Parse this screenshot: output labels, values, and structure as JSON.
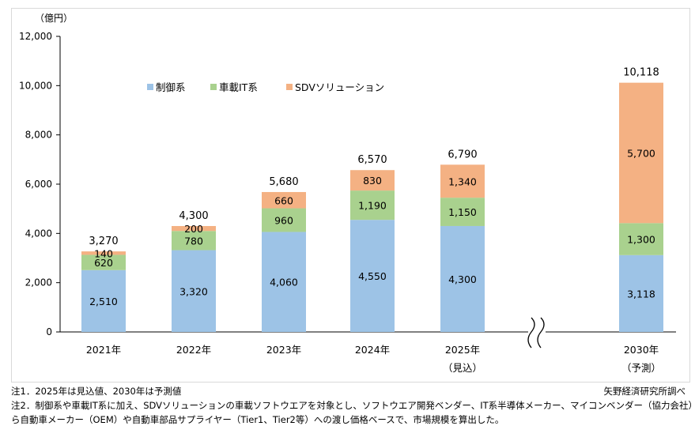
{
  "chart_data": {
    "type": "bar",
    "stacked": true,
    "unit_label": "（億円）",
    "ylim": [
      0,
      12000
    ],
    "yticks": [
      "0",
      "2,000",
      "4,000",
      "6,000",
      "8,000",
      "10,000",
      "12,000"
    ],
    "ytick_values": [
      0,
      2000,
      4000,
      6000,
      8000,
      10000,
      12000
    ],
    "categories": [
      "2021年",
      "2022年",
      "2023年",
      "2024年",
      "2025年",
      "2030年"
    ],
    "category_sublabels": [
      "",
      "",
      "",
      "",
      "（見込）",
      "（予測）"
    ],
    "axis_break_between": [
      "2025年",
      "2030年"
    ],
    "legend_position": "top-left",
    "grid": false,
    "series": [
      {
        "name": "制御系",
        "color": "#9dc3e6",
        "values": [
          2510,
          3320,
          4060,
          4550,
          4300,
          3118
        ],
        "labels": [
          "2,510",
          "3,320",
          "4,060",
          "4,550",
          "4,300",
          "3,118"
        ]
      },
      {
        "name": "車載IT系",
        "color": "#a9d18e",
        "values": [
          620,
          780,
          960,
          1190,
          1150,
          1300
        ],
        "labels": [
          "620",
          "780",
          "960",
          "1,190",
          "1,150",
          "1,300"
        ]
      },
      {
        "name": "SDVソリューション",
        "color": "#f4b183",
        "values": [
          140,
          200,
          660,
          830,
          1340,
          5700
        ],
        "labels": [
          "140",
          "200",
          "660",
          "830",
          "1,340",
          "5,700"
        ]
      }
    ],
    "totals": [
      3270,
      4300,
      5680,
      6570,
      6790,
      10118
    ],
    "total_labels": [
      "3,270",
      "4,300",
      "5,680",
      "6,570",
      "6,790",
      "10,118"
    ]
  },
  "notes": {
    "note1": "注1．2025年は見込値、2030年は予測値",
    "note2_line1": "注2．制御系や車載IT系に加え、SDVソリューションの車載ソフトウエアを対象とし、ソフトウエア開発ベンダー、IT系半導体メーカー、マイコンベンダー（協力会社）か",
    "note2_line2": "ら自動車メーカー（OEM）や自動車部品サプライヤー（Tier1、Tier2等）への渡し価格ベースで、市場規模を算出した。",
    "source": "矢野経済研究所調べ"
  }
}
